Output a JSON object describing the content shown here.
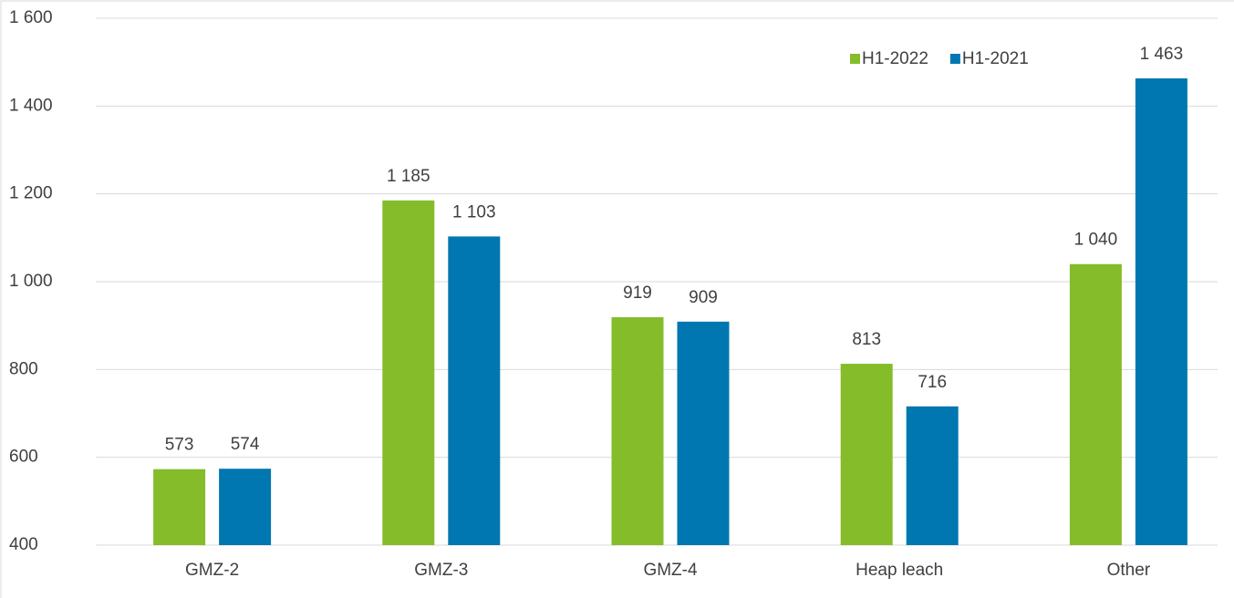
{
  "chart_data": {
    "type": "bar",
    "categories": [
      "GMZ-2",
      "GMZ-3",
      "GMZ-4",
      "Heap leach",
      "Other"
    ],
    "series": [
      {
        "name": "H1-2022",
        "color": "#84bc2a",
        "values": [
          573,
          1185,
          919,
          813,
          1040
        ],
        "value_labels": [
          "573",
          "1 185",
          "919",
          "813",
          "1 040"
        ]
      },
      {
        "name": "H1-2021",
        "color": "#0077b0",
        "values": [
          574,
          1103,
          909,
          716,
          1463
        ],
        "value_labels": [
          "574",
          "1 103",
          "909",
          "716",
          "1 463"
        ]
      }
    ],
    "ylim": [
      400,
      1600
    ],
    "yticks": [
      400,
      600,
      800,
      {
        "value": 1000,
        "label": "1 000"
      },
      {
        "value": 1200,
        "label": "1 200"
      },
      {
        "value": 1400,
        "label": "1 400"
      },
      {
        "value": 1600,
        "label": "1 600"
      }
    ],
    "grid": true,
    "legend": "top-right"
  }
}
